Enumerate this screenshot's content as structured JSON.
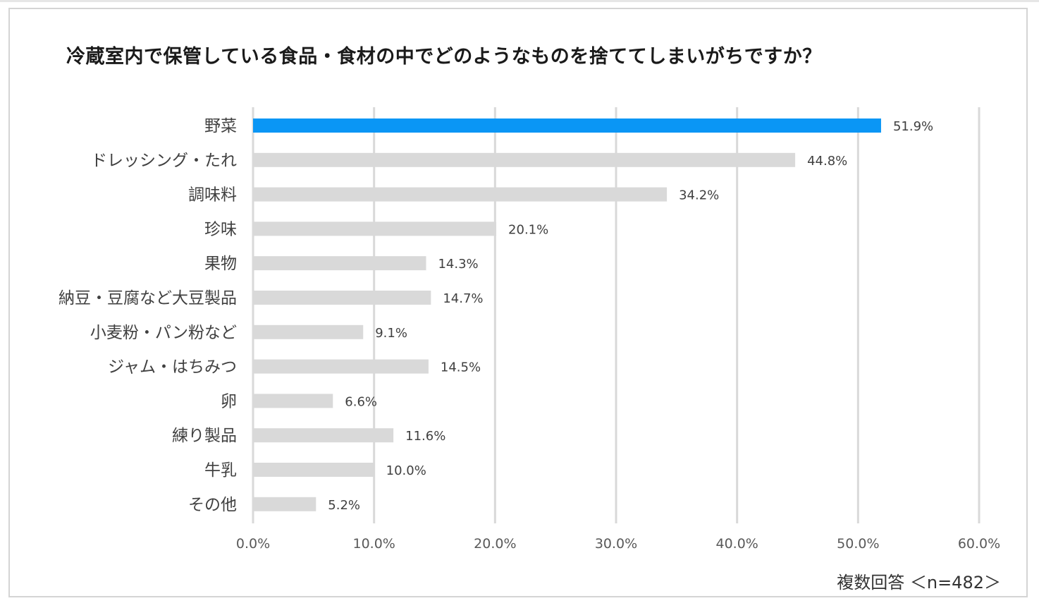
{
  "chart_data": {
    "type": "bar",
    "orientation": "horizontal",
    "title": "冷蔵室内で保管している食品・食材の中でどのようなものを捨ててしまいがちですか？",
    "categories": [
      "野菜",
      "ドレッシング・たれ",
      "調味料",
      "珍味",
      "果物",
      "納豆・豆腐など大豆製品",
      "小麦粉・パン粉など",
      "ジャム・はちみつ",
      "卵",
      "練り製品",
      "牛乳",
      "その他"
    ],
    "values": [
      51.9,
      44.8,
      34.2,
      20.1,
      14.3,
      14.7,
      9.1,
      14.5,
      6.6,
      11.6,
      10.0,
      5.2
    ],
    "value_labels": [
      "51.9%",
      "44.8%",
      "34.2%",
      "20.1%",
      "14.3%",
      "14.7%",
      "9.1%",
      "14.5%",
      "6.6%",
      "11.6%",
      "10.0%",
      "5.2%"
    ],
    "highlight_index": 0,
    "xlim": [
      0,
      60
    ],
    "x_ticks": [
      0,
      10,
      20,
      30,
      40,
      50,
      60
    ],
    "x_tick_labels": [
      "0.0%",
      "10.0%",
      "20.0%",
      "30.0%",
      "40.0%",
      "50.0%",
      "60.0%"
    ],
    "grid": true,
    "xlabel": "",
    "ylabel": "",
    "note": "複数回答 ＜n=482＞"
  },
  "colors": {
    "highlight_bar": "#0a96f5",
    "bar": "#d9d9d9",
    "grid": "#d9d9d9",
    "frame": "#d4d4d4"
  }
}
